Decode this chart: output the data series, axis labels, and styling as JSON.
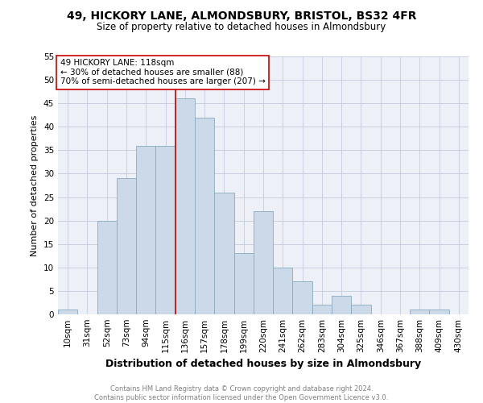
{
  "title": "49, HICKORY LANE, ALMONDSBURY, BRISTOL, BS32 4FR",
  "subtitle": "Size of property relative to detached houses in Almondsbury",
  "xlabel": "Distribution of detached houses by size in Almondsbury",
  "ylabel": "Number of detached properties",
  "footnote": "Contains HM Land Registry data © Crown copyright and database right 2024.\nContains public sector information licensed under the Open Government Licence v3.0.",
  "bin_labels": [
    "10sqm",
    "31sqm",
    "52sqm",
    "73sqm",
    "94sqm",
    "115sqm",
    "136sqm",
    "157sqm",
    "178sqm",
    "199sqm",
    "220sqm",
    "241sqm",
    "262sqm",
    "283sqm",
    "304sqm",
    "325sqm",
    "346sqm",
    "367sqm",
    "388sqm",
    "409sqm",
    "430sqm"
  ],
  "bar_values": [
    1,
    0,
    20,
    29,
    36,
    36,
    46,
    42,
    26,
    13,
    22,
    10,
    7,
    2,
    4,
    2,
    0,
    0,
    1,
    1,
    0
  ],
  "bar_color": "#ccd9e8",
  "bar_edge_color": "#8aaac0",
  "vline_x": 5.5,
  "vline_color": "#cc0000",
  "annotation_text": "49 HICKORY LANE: 118sqm\n← 30% of detached houses are smaller (88)\n70% of semi-detached houses are larger (207) →",
  "annotation_box_color": "#cc0000",
  "ylim": [
    0,
    55
  ],
  "yticks": [
    0,
    5,
    10,
    15,
    20,
    25,
    30,
    35,
    40,
    45,
    50,
    55
  ],
  "background_color": "#eef0f8",
  "grid_color": "#c8d0e0",
  "title_fontsize": 10,
  "subtitle_fontsize": 8.5,
  "ylabel_fontsize": 8,
  "xlabel_fontsize": 9,
  "tick_fontsize": 7.5,
  "annot_fontsize": 7.5,
  "footnote_fontsize": 6,
  "footnote_color": "#808080"
}
